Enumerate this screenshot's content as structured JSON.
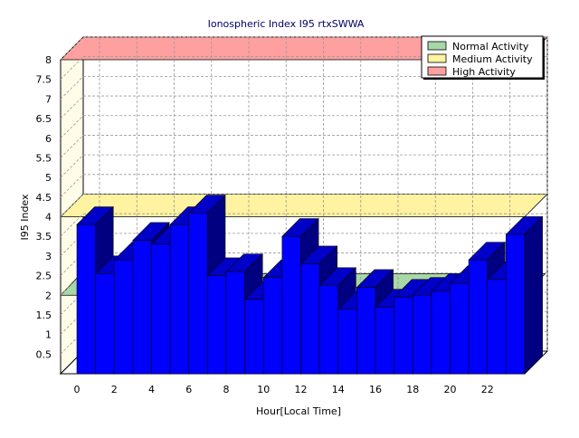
{
  "chart_data": {
    "type": "bar",
    "title": "Ionospheric Index I95 rtxSWWA",
    "xlabel": "Hour[Local Time]",
    "ylabel": "I95 Index",
    "ylim": [
      0,
      8
    ],
    "y_ticks": [
      "0.5",
      "1",
      "1.5",
      "2",
      "2.5",
      "3",
      "3.5",
      "4",
      "4.5",
      "5",
      "5.5",
      "6",
      "6.5",
      "7",
      "7.5",
      "8"
    ],
    "x_ticks": [
      "0",
      "2",
      "4",
      "6",
      "8",
      "10",
      "12",
      "14",
      "16",
      "18",
      "20",
      "22"
    ],
    "x": [
      0,
      1,
      2,
      3,
      4,
      5,
      6,
      7,
      8,
      9,
      10,
      11,
      12,
      13,
      14,
      15,
      16,
      17,
      18,
      19,
      20,
      21,
      22,
      23
    ],
    "values": [
      3.8,
      2.55,
      2.9,
      3.4,
      3.3,
      3.8,
      4.1,
      2.5,
      2.6,
      1.9,
      2.45,
      3.5,
      2.8,
      2.25,
      1.65,
      2.2,
      1.7,
      1.95,
      2.0,
      2.1,
      2.3,
      2.9,
      2.4,
      3.55
    ],
    "bands": [
      {
        "name": "Normal Activity",
        "from": 0,
        "to": 2,
        "color": "#a8d8a8"
      },
      {
        "name": "Medium Activity",
        "from": 2,
        "to": 4,
        "color": "#fff2a0"
      },
      {
        "name": "High Activity",
        "from": 4,
        "to": 8,
        "color": "#ffa0a0"
      }
    ],
    "legend": {
      "position": "top-right",
      "items": [
        {
          "name": "Normal Activity",
          "color": "#a8d8a8"
        },
        {
          "name": "Medium Activity",
          "color": "#fff2a0"
        },
        {
          "name": "High Activity",
          "color": "#ffa0a0"
        }
      ]
    },
    "grid": true,
    "colors": {
      "bar_front": "#0000ff",
      "bar_top": "#0000c8",
      "bar_side": "#000080",
      "wall": "#fffde8"
    }
  }
}
